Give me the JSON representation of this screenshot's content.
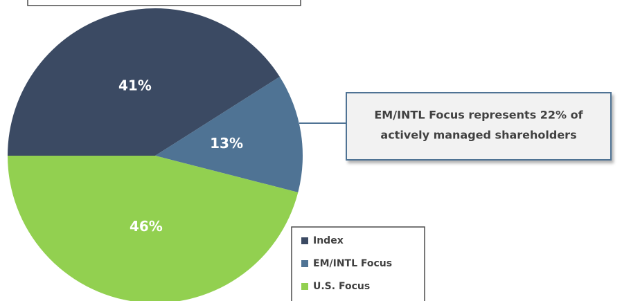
{
  "chart_data": {
    "type": "pie",
    "categories": [
      "Index",
      "EM/INTL Focus",
      "U.S. Focus"
    ],
    "values": [
      41,
      13,
      46
    ],
    "value_labels": [
      "41%",
      "13%",
      "46%"
    ],
    "colors": [
      "#3b4a63",
      "#4f7394",
      "#92d050"
    ],
    "annotation": [
      "EM/INTL Focus represents 22% of",
      "actively managed shareholders"
    ],
    "legend": "bottom-right"
  }
}
